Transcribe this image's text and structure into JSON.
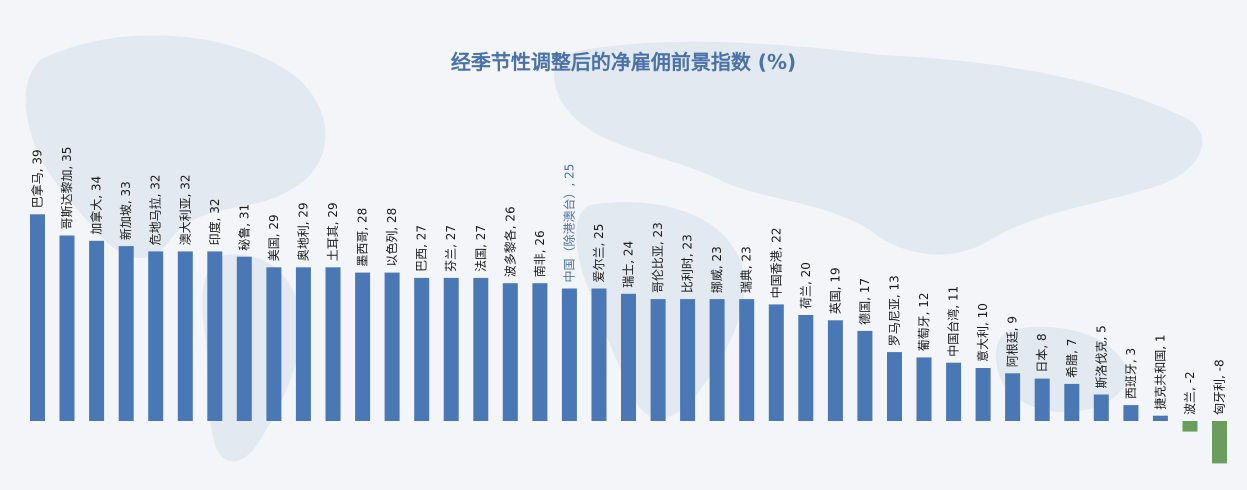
{
  "chart_data": {
    "type": "bar",
    "title": "经季节性调整后的净雇佣前景指数 (%)",
    "categories": [
      "巴拿马",
      "哥斯达黎加",
      "加拿大",
      "新加坡",
      "危地马拉",
      "澳大利亚",
      "印度",
      "秘鲁",
      "美国",
      "奥地利",
      "土耳其",
      "墨西哥",
      "以色列",
      "巴西",
      "芬兰",
      "法国",
      "波多黎各",
      "南非",
      "中国（除港澳台）",
      "爱尔兰",
      "瑞士",
      "哥伦比亚",
      "比利时",
      "挪威",
      "瑞典",
      "中国香港",
      "荷兰",
      "英国",
      "德国",
      "罗马尼亚",
      "葡萄牙",
      "中国台湾",
      "意大利",
      "阿根廷",
      "日本",
      "希腊",
      "斯洛伐克",
      "西班牙",
      "捷克共和国",
      "波兰",
      "匈牙利"
    ],
    "values": [
      39,
      35,
      34,
      33,
      32,
      32,
      32,
      31,
      29,
      29,
      29,
      28,
      28,
      27,
      27,
      27,
      26,
      26,
      25,
      25,
      24,
      23,
      23,
      23,
      23,
      22,
      20,
      19,
      17,
      13,
      12,
      11,
      10,
      9,
      8,
      7,
      5,
      3,
      1,
      -2,
      -8
    ],
    "labels": [
      "巴拿马, 39",
      "哥斯达黎加, 35",
      "加拿大, 34",
      "新加坡, 33",
      "危地马拉, 32",
      "澳大利亚, 32",
      "印度, 32",
      "秘鲁, 31",
      "美国, 29",
      "奥地利, 29",
      "土耳其, 29",
      "墨西哥, 28",
      "以色列, 28",
      "巴西, 27",
      "芬兰, 27",
      "法国, 27",
      "波多黎各, 26",
      "南非, 26",
      "中国（除港澳台）, 25",
      "爱尔兰, 25",
      "瑞士, 24",
      "哥伦比亚, 23",
      "比利时, 23",
      "挪威, 23",
      "瑞典, 23",
      "中国香港, 22",
      "荷兰, 20",
      "英国, 19",
      "德国, 17",
      "罗马尼亚, 13",
      "葡萄牙, 12",
      "中国台湾, 11",
      "意大利, 10",
      "阿根廷, 9",
      "日本, 8",
      "希腊, 7",
      "斯洛伐克, 5",
      "西班牙, 3",
      "捷克共和国, 1",
      "波兰, -2",
      "匈牙利, -8"
    ],
    "highlight_category": "中国（除港澳台）",
    "ylim": [
      -8,
      39
    ],
    "grid": false,
    "legend": "none",
    "colors": {
      "positive": "#4a78b5",
      "negative": "#6b9e5e",
      "highlight_label": "#4a72a8",
      "label": "#1a1a1a",
      "title": "#4a72a8",
      "map": "#dfe5ee"
    }
  }
}
